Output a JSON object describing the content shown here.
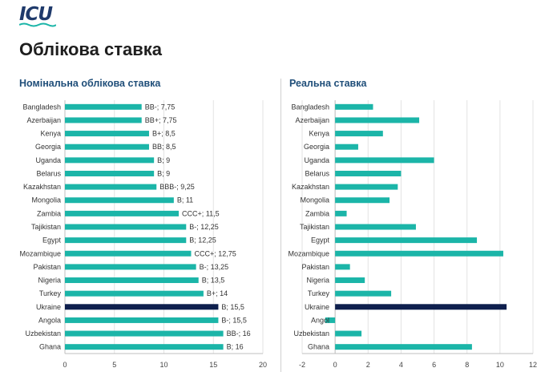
{
  "header": {
    "logo_text": "ICU",
    "title": "Облікова ставка"
  },
  "colors": {
    "bar": "#1bb5a8",
    "highlight": "#0e1f4d",
    "title": "#1f4e79",
    "grid": "#e3e3e3"
  },
  "chart_data": [
    {
      "type": "bar",
      "orientation": "horizontal",
      "title": "Номінальна облікова ставка",
      "categories": [
        "Bangladesh",
        "Azerbaijan",
        "Kenya",
        "Georgia",
        "Uganda",
        "Belarus",
        "Kazakhstan",
        "Mongolia",
        "Zambia",
        "Tajikistan",
        "Egypt",
        "Mozambique",
        "Pakistan",
        "Nigeria",
        "Turkey",
        "Ukraine",
        "Angola",
        "Uzbekistan",
        "Ghana"
      ],
      "values": [
        7.75,
        7.75,
        8.5,
        8.5,
        9,
        9,
        9.25,
        11,
        11.5,
        12.25,
        12.25,
        12.75,
        13.25,
        13.5,
        14,
        15.5,
        15.5,
        16,
        16
      ],
      "data_labels": [
        "BB-; 7,75",
        "BB+; 7,75",
        "B+; 8,5",
        "BB; 8,5",
        "B; 9",
        "B; 9",
        "BBB-; 9,25",
        "B; 11",
        "CCC+; 11,5",
        "B-; 12,25",
        "B; 12,25",
        "CCC+; 12,75",
        "B-; 13,25",
        "B; 13,5",
        "B+; 14",
        "B; 15,5",
        "B-; 15,5",
        "BB-; 16",
        "B; 16"
      ],
      "highlight": "Ukraine",
      "xlim": [
        0,
        20
      ],
      "xticks": [
        0,
        5,
        10,
        15,
        20
      ],
      "xtick_labels": [
        "0",
        "5",
        "10",
        "15",
        "20"
      ],
      "grid": true
    },
    {
      "type": "bar",
      "orientation": "horizontal",
      "title": "Реальна ставка",
      "categories": [
        "Bangladesh",
        "Azerbaijan",
        "Kenya",
        "Georgia",
        "Uganda",
        "Belarus",
        "Kazakhstan",
        "Mongolia",
        "Zambia",
        "Tajikistan",
        "Egypt",
        "Mozambique",
        "Pakistan",
        "Nigeria",
        "Turkey",
        "Ukraine",
        "Angol",
        "Uzbekistan",
        "Ghana"
      ],
      "values": [
        2.3,
        5.1,
        2.9,
        1.4,
        6.0,
        4.0,
        3.8,
        3.3,
        0.7,
        4.9,
        8.6,
        10.2,
        0.9,
        1.8,
        3.4,
        10.4,
        -0.6,
        1.6,
        8.3
      ],
      "highlight": "Ukraine",
      "xlim": [
        -2,
        12
      ],
      "xticks": [
        -2,
        0,
        2,
        4,
        6,
        8,
        10,
        12
      ],
      "xtick_labels": [
        "-2",
        "0",
        "2",
        "4",
        "6",
        "8",
        "10",
        "12"
      ],
      "grid": true
    }
  ]
}
